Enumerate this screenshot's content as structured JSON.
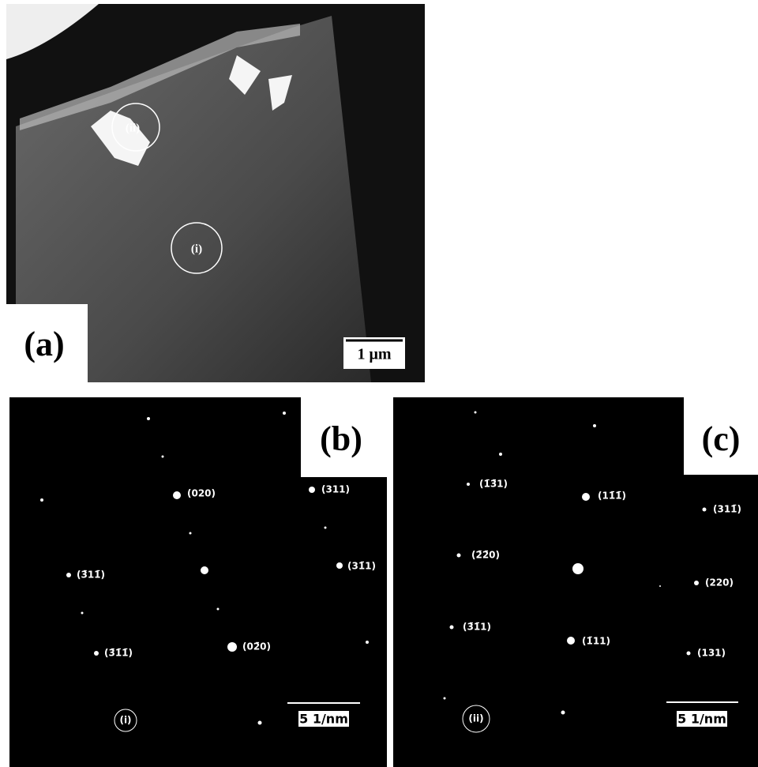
{
  "panels": [
    {
      "label": "(a)",
      "scale_bar": "1 μm",
      "regions": [
        "(ii)",
        "(i)"
      ]
    },
    {
      "label": "(b)",
      "scale_bar": "5 1/nm",
      "region": "(i)",
      "spots": [
        "(020)",
        "(311)",
        "(3̄11̄)",
        "(31̄1)",
        "(3̄1̄1̄)",
        "(02̄0)"
      ]
    },
    {
      "label": "(c)",
      "scale_bar": "5 1/nm",
      "region": "(ii)",
      "spots": [
        "(1̄3̄1)",
        "(11̄1̄)",
        "(311̄)",
        "(2̄2̄0)",
        "(220)",
        "(3̄1̄1)",
        "(1̄11)",
        "(131)"
      ]
    }
  ]
}
